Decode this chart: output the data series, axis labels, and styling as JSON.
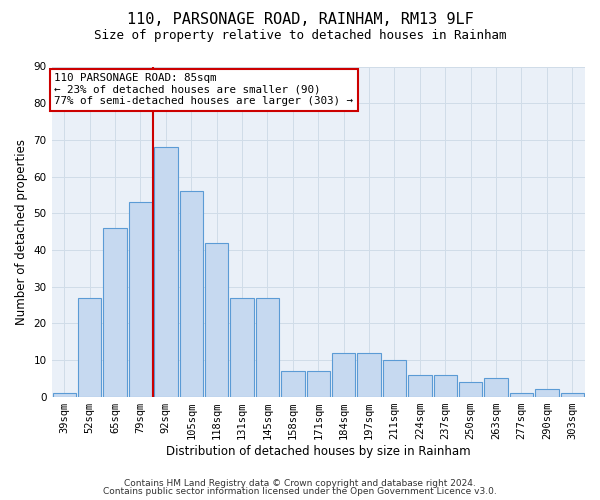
{
  "title": "110, PARSONAGE ROAD, RAINHAM, RM13 9LF",
  "subtitle": "Size of property relative to detached houses in Rainham",
  "xlabel": "Distribution of detached houses by size in Rainham",
  "ylabel": "Number of detached properties",
  "categories": [
    "39sqm",
    "52sqm",
    "65sqm",
    "79sqm",
    "92sqm",
    "105sqm",
    "118sqm",
    "131sqm",
    "145sqm",
    "158sqm",
    "171sqm",
    "184sqm",
    "197sqm",
    "211sqm",
    "224sqm",
    "237sqm",
    "250sqm",
    "263sqm",
    "277sqm",
    "290sqm",
    "303sqm"
  ],
  "values": [
    1,
    27,
    46,
    53,
    68,
    56,
    42,
    27,
    27,
    7,
    7,
    12,
    12,
    10,
    6,
    6,
    4,
    5,
    1,
    2,
    1
  ],
  "bar_color": "#c6d9f0",
  "bar_edge_color": "#5b9bd5",
  "annotation_text": "110 PARSONAGE ROAD: 85sqm\n← 23% of detached houses are smaller (90)\n77% of semi-detached houses are larger (303) →",
  "annotation_box_color": "#ffffff",
  "annotation_box_edge_color": "#cc0000",
  "footer1": "Contains HM Land Registry data © Crown copyright and database right 2024.",
  "footer2": "Contains public sector information licensed under the Open Government Licence v3.0.",
  "ylim": [
    0,
    90
  ],
  "yticks": [
    0,
    10,
    20,
    30,
    40,
    50,
    60,
    70,
    80,
    90
  ],
  "background_color": "#eaf0f8",
  "grid_color": "#d0dce8",
  "title_fontsize": 11,
  "subtitle_fontsize": 9,
  "axis_label_fontsize": 8.5,
  "tick_fontsize": 7.5,
  "footer_fontsize": 6.5
}
